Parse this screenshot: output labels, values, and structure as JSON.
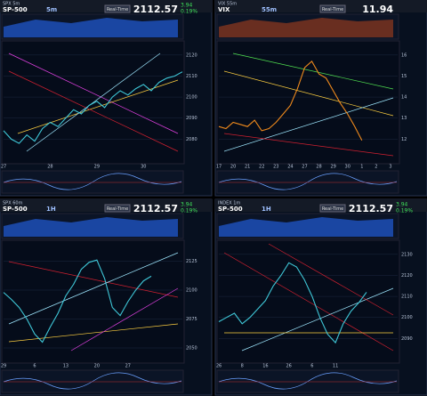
{
  "chart_data": [
    {
      "type": "line",
      "title": "SPX 5m",
      "symbol": "SP-500",
      "interval": "5m",
      "button": "Real-Time",
      "price": "2112.57",
      "change": "3.94",
      "change_pct": "0.19%",
      "categories": [
        "27",
        null,
        null,
        null,
        null,
        null,
        "28",
        null,
        null,
        null,
        null,
        null,
        "29",
        null,
        null,
        null,
        null,
        null,
        "30",
        null,
        null,
        null,
        null,
        null
      ],
      "series": [
        {
          "name": "SP-500",
          "color": "#3fc8d8",
          "values": [
            2084,
            2080,
            2078,
            2082,
            2079,
            2085,
            2088,
            2086,
            2090,
            2094,
            2092,
            2096,
            2098,
            2095,
            2100,
            2103,
            2101,
            2104,
            2106,
            2103,
            2107,
            2109,
            2110,
            2112
          ]
        }
      ],
      "ylim": [
        2070,
        2125
      ],
      "yticks": [
        2080,
        2090,
        2100,
        2110,
        2120
      ],
      "grid": true
    },
    {
      "type": "line",
      "title": "VIX 55m",
      "symbol": "VIX",
      "interval": "55m",
      "button": "Real-Time",
      "price": "11.94",
      "categories": [
        "17",
        null,
        "20",
        null,
        "21",
        null,
        "22",
        null,
        "23",
        null,
        "24",
        null,
        "27",
        null,
        "28",
        null,
        "29",
        null,
        "30",
        null,
        "1",
        null,
        "2",
        null,
        "3",
        null
      ],
      "series": [
        {
          "name": "VIX",
          "color": "#f08a1c",
          "values": [
            12.6,
            12.5,
            12.8,
            12.7,
            12.6,
            12.9,
            12.4,
            12.5,
            12.8,
            13.2,
            13.6,
            14.4,
            15.4,
            15.7,
            15.1,
            14.9,
            14.3,
            13.7,
            13.2,
            12.6,
            11.94,
            null,
            null,
            null,
            null,
            null
          ]
        }
      ],
      "ylim": [
        11,
        16.5
      ],
      "yticks": [
        12,
        13,
        14,
        15,
        16
      ],
      "grid": true
    },
    {
      "type": "line",
      "title": "SPX 60m",
      "symbol": "SP-500",
      "interval": "1H",
      "button": "Real-Time",
      "price": "2112.57",
      "change": "3.94",
      "change_pct": "0.19%",
      "categories": [
        "29",
        null,
        null,
        null,
        "6",
        null,
        null,
        null,
        "13",
        null,
        null,
        null,
        "20",
        null,
        null,
        null,
        "27",
        null,
        null,
        null,
        null,
        null,
        null,
        null
      ],
      "series": [
        {
          "name": "SP-500",
          "color": "#3fc8d8",
          "values": [
            2098,
            2092,
            2085,
            2075,
            2062,
            2055,
            2068,
            2080,
            2095,
            2105,
            2118,
            2124,
            2126,
            2110,
            2085,
            2078,
            2090,
            2100,
            2108,
            2112,
            null,
            null,
            null,
            null
          ]
        }
      ],
      "ylim": [
        2040,
        2140
      ],
      "yticks": [
        2050,
        2075,
        2100,
        2125
      ],
      "grid": true
    },
    {
      "type": "line",
      "title": "INDEX 1m",
      "symbol": "SP-500",
      "interval": "1H",
      "button": "Real-Time",
      "price": "2112.57",
      "change": "3.94",
      "change_pct": "0.19%",
      "categories": [
        "26",
        null,
        null,
        "8",
        null,
        null,
        "16",
        null,
        null,
        "26",
        null,
        null,
        "6",
        null,
        null,
        "11",
        null,
        null,
        null,
        null,
        null,
        null,
        null,
        null
      ],
      "series": [
        {
          "name": "SP-500",
          "color": "#3fc8d8",
          "values": [
            2098,
            2100,
            2102,
            2097,
            2100,
            2104,
            2108,
            2115,
            2120,
            2126,
            2124,
            2118,
            2110,
            2100,
            2092,
            2088,
            2097,
            2103,
            2107,
            2112,
            null,
            null,
            null,
            null
          ]
        }
      ],
      "ylim": [
        2080,
        2135
      ],
      "yticks": [
        2090,
        2100,
        2110,
        2120,
        2130
      ],
      "grid": true
    }
  ]
}
